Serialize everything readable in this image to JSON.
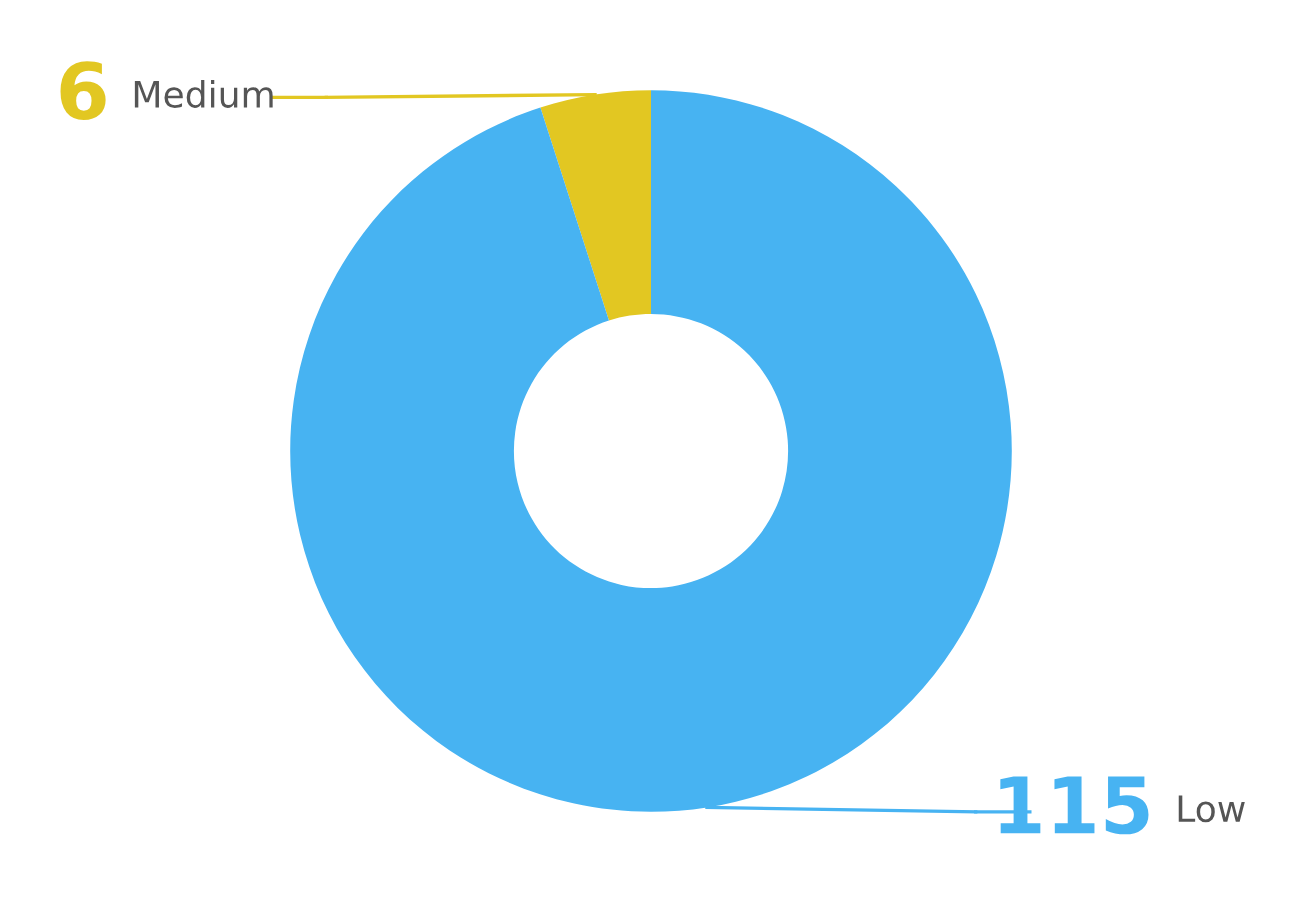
{
  "chart_data": {
    "type": "donut",
    "categories": [
      "Medium",
      "Low"
    ],
    "values": [
      6,
      115
    ],
    "colors": [
      "#e2c722",
      "#47b3f2"
    ],
    "data_labels": true
  }
}
